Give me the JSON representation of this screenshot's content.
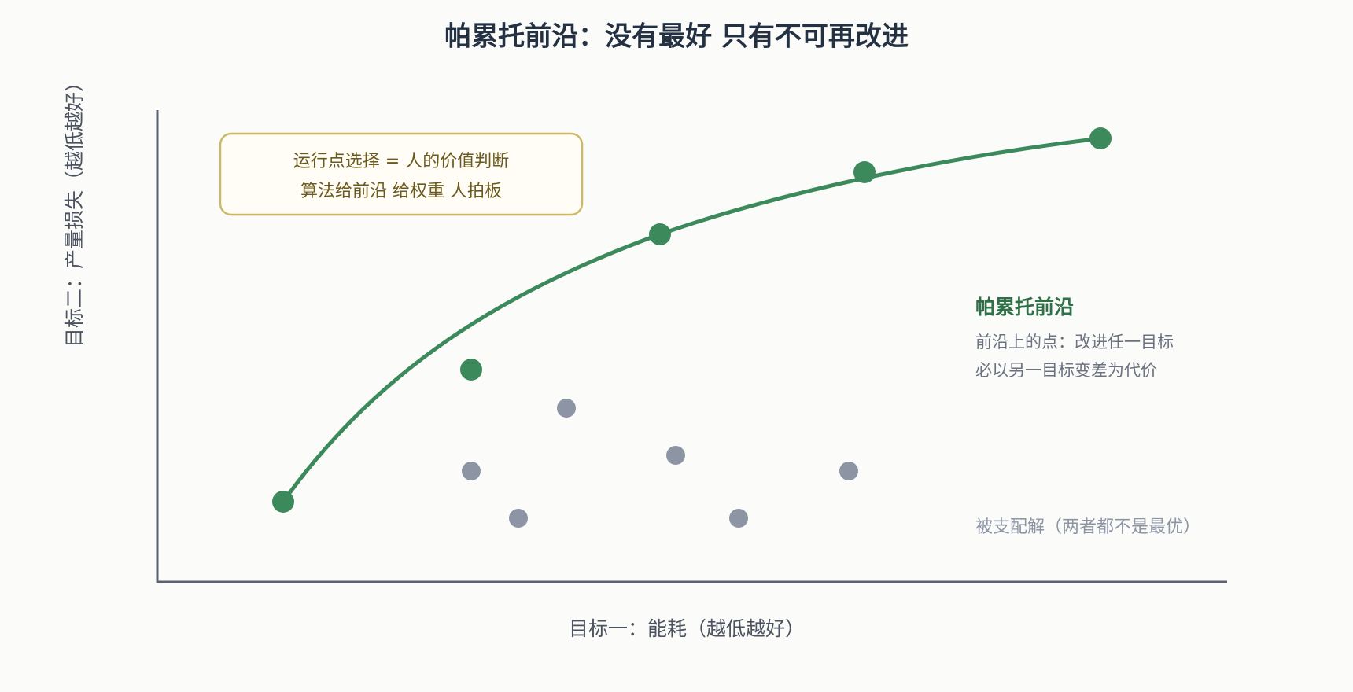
{
  "title": "帕累托前沿：没有最好 只有不可再改进",
  "annotation": {
    "lines": [
      "运行点选择 = 人的价值判断",
      "算法给前沿 给权重 人拍板"
    ]
  },
  "legend": {
    "frontier": {
      "title": "帕累托前沿",
      "lines": [
        "前沿上的点：改进任一目标",
        "必以另一目标变差为代价"
      ]
    },
    "dominated": "被支配解（两者都不是最优）"
  },
  "axes": {
    "x_label": "目标一：能耗（越低越好）",
    "y_label": "目标二：产量损失（越低越好）"
  }
}
